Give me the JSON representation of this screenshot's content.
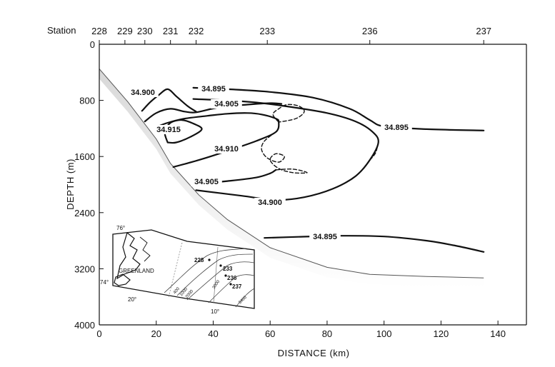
{
  "chart_data": {
    "type": "line",
    "title": "",
    "xlabel": "DISTANCE (km)",
    "ylabel": "DEPTH (m)",
    "xlim": [
      0,
      150
    ],
    "ylim": [
      0,
      4000
    ],
    "y_inverted": true,
    "grid": false,
    "x_ticks": [
      "0",
      "20",
      "40",
      "60",
      "80",
      "100",
      "120",
      "140"
    ],
    "x_tick_values": [
      0,
      20,
      40,
      60,
      80,
      100,
      120,
      140
    ],
    "y_ticks": [
      "0",
      "800",
      "1600",
      "2400",
      "3200",
      "4000"
    ],
    "y_tick_values": [
      0,
      800,
      1600,
      2400,
      3200,
      4000
    ],
    "station_label": "Station",
    "stations": [
      {
        "name": "228",
        "x": 0
      },
      {
        "name": "229",
        "x": 9
      },
      {
        "name": "230",
        "x": 16
      },
      {
        "name": "231",
        "x": 25
      },
      {
        "name": "232",
        "x": 34
      },
      {
        "name": "233",
        "x": 59
      },
      {
        "name": "236",
        "x": 95
      },
      {
        "name": "237",
        "x": 135
      }
    ],
    "bottom_profile": [
      [
        0,
        350
      ],
      [
        10,
        820
      ],
      [
        20,
        1350
      ],
      [
        25,
        1700
      ],
      [
        35,
        2150
      ],
      [
        45,
        2500
      ],
      [
        60,
        2900
      ],
      [
        80,
        3180
      ],
      [
        95,
        3280
      ],
      [
        115,
        3310
      ],
      [
        135,
        3330
      ]
    ],
    "contours": [
      {
        "label": "34.915",
        "dashed": false,
        "points": [
          [
            24,
            1400
          ],
          [
            23,
            1250
          ],
          [
            25,
            1120
          ],
          [
            29,
            1080
          ],
          [
            33,
            1130
          ],
          [
            36,
            1210
          ],
          [
            32,
            1320
          ],
          [
            27,
            1400
          ],
          [
            24,
            1400
          ]
        ]
      },
      {
        "label": "34.900",
        "dashed": false,
        "points": [
          [
            15,
            950
          ],
          [
            18,
            820
          ],
          [
            21,
            720
          ],
          [
            24,
            640
          ],
          [
            27,
            740
          ],
          [
            31,
            880
          ],
          [
            34,
            960
          ]
        ]
      },
      {
        "label": "34.905",
        "dashed": false,
        "points": [
          [
            16,
            1100
          ],
          [
            20,
            980
          ],
          [
            25,
            920
          ],
          [
            30,
            960
          ],
          [
            34,
            970
          ],
          [
            42,
            900
          ],
          [
            52,
            860
          ],
          [
            60,
            840
          ],
          [
            64,
            850
          ]
        ]
      },
      {
        "label": "34.910",
        "dashed": false,
        "points": [
          [
            26,
            1750
          ],
          [
            35,
            1650
          ],
          [
            45,
            1520
          ],
          [
            55,
            1380
          ],
          [
            62,
            1250
          ],
          [
            63,
            1110
          ],
          [
            62,
            1060
          ],
          [
            57,
            1000
          ],
          [
            52,
            980
          ],
          [
            45,
            990
          ],
          [
            38,
            1020
          ],
          [
            30,
            1060
          ],
          [
            24,
            1120
          ],
          [
            20,
            1180
          ]
        ]
      },
      {
        "label": "34.910",
        "dashed": true,
        "points": [
          [
            63,
            1110
          ],
          [
            61,
            1000
          ],
          [
            63,
            920
          ],
          [
            66,
            860
          ],
          [
            70,
            880
          ],
          [
            72,
            960
          ],
          [
            69,
            1060
          ],
          [
            63,
            1110
          ]
        ]
      },
      {
        "label": "34.905",
        "dashed": true,
        "points": [
          [
            62,
            1250
          ],
          [
            58,
            1380
          ],
          [
            57,
            1500
          ],
          [
            59,
            1620
          ],
          [
            63,
            1680
          ],
          [
            65,
            1600
          ],
          [
            62,
            1560
          ],
          [
            60,
            1650
          ],
          [
            63,
            1770
          ],
          [
            68,
            1830
          ],
          [
            73,
            1830
          ],
          [
            68,
            1780
          ],
          [
            62,
            1790
          ]
        ]
      },
      {
        "label": "34.905",
        "dashed": false,
        "points": [
          [
            34,
            1990
          ],
          [
            45,
            1950
          ],
          [
            55,
            1900
          ],
          [
            60,
            1840
          ],
          [
            62,
            1790
          ]
        ]
      },
      {
        "label": "34.900",
        "dashed": false,
        "points": [
          [
            34,
            2080
          ],
          [
            50,
            2160
          ],
          [
            62,
            2220
          ],
          [
            72,
            2180
          ],
          [
            82,
            2060
          ],
          [
            90,
            1880
          ],
          [
            95,
            1650
          ],
          [
            98,
            1400
          ],
          [
            96,
            1250
          ],
          [
            90,
            1100
          ],
          [
            80,
            980
          ],
          [
            65,
            880
          ],
          [
            55,
            830
          ],
          [
            45,
            800
          ],
          [
            33,
            780
          ]
        ]
      },
      {
        "label": "34.900",
        "dashed": true,
        "points": [
          [
            95,
            1650
          ],
          [
            97,
            1550
          ],
          [
            98,
            1400
          ]
        ]
      },
      {
        "label": "34.895",
        "dashed": false,
        "points": [
          [
            33,
            620
          ],
          [
            45,
            640
          ],
          [
            60,
            680
          ],
          [
            75,
            760
          ],
          [
            88,
            920
          ],
          [
            95,
            1080
          ],
          [
            100,
            1170
          ],
          [
            115,
            1210
          ],
          [
            135,
            1230
          ]
        ]
      },
      {
        "label": "34.895",
        "dashed": false,
        "points": [
          [
            58,
            2760
          ],
          [
            70,
            2745
          ],
          [
            85,
            2730
          ],
          [
            100,
            2740
          ],
          [
            115,
            2800
          ],
          [
            125,
            2870
          ],
          [
            135,
            2960
          ]
        ]
      }
    ],
    "inset_map": {
      "labels": [
        "76°",
        "74°",
        "20°",
        "10°",
        "GREENLAND"
      ],
      "stations": [
        "228",
        "233",
        "236",
        "237"
      ],
      "contour_labels": [
        "400",
        "1000",
        "2000",
        "3000",
        "3400"
      ]
    }
  }
}
